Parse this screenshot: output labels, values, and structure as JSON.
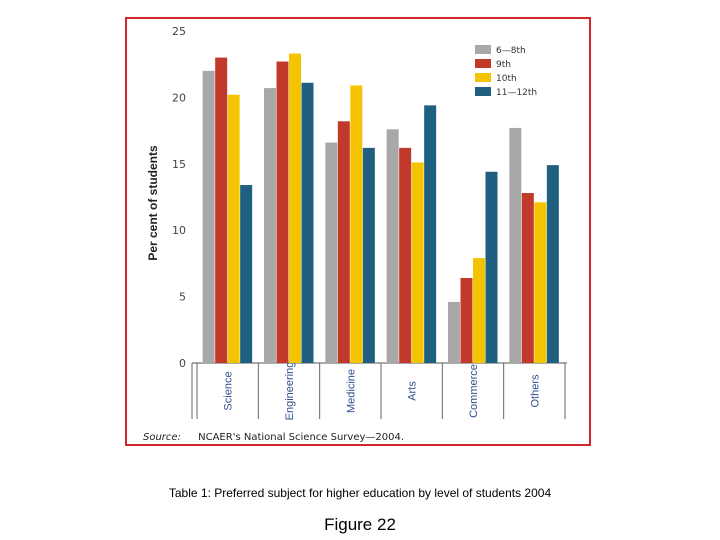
{
  "chart_data": {
    "type": "bar",
    "categories": [
      "Science",
      "Engineering",
      "Medicine",
      "Arts",
      "Commerce",
      "Others"
    ],
    "series": [
      {
        "name": "6—8th",
        "color": "#a8a8a8",
        "values": [
          22,
          20.7,
          16.6,
          17.6,
          4.6,
          17.7
        ]
      },
      {
        "name": "9th",
        "color": "#c0392b",
        "values": [
          23,
          22.7,
          18.2,
          16.2,
          6.4,
          12.8
        ]
      },
      {
        "name": "10th",
        "color": "#f5c400",
        "values": [
          20.2,
          23.3,
          20.9,
          15.1,
          7.9,
          12.1
        ]
      },
      {
        "name": "11—12th",
        "color": "#1f5f7f",
        "values": [
          13.4,
          21.1,
          16.2,
          19.4,
          14.4,
          14.9
        ]
      }
    ],
    "yticks": [
      0,
      5,
      10,
      15,
      20,
      25
    ],
    "ylim": [
      0,
      25
    ],
    "ylabel": "Per cent of students",
    "xlabel": "",
    "legend_position": "top-right",
    "grid": false
  },
  "source_label": "Source:",
  "source_text": "NCAER's National Science Survey—2004.",
  "caption": "Table 1: Preferred subject for higher education by level of students 2004",
  "figure_label": "Figure 22",
  "colors": {
    "frame": "#d0262c",
    "category_text": "#2f4f8f"
  }
}
